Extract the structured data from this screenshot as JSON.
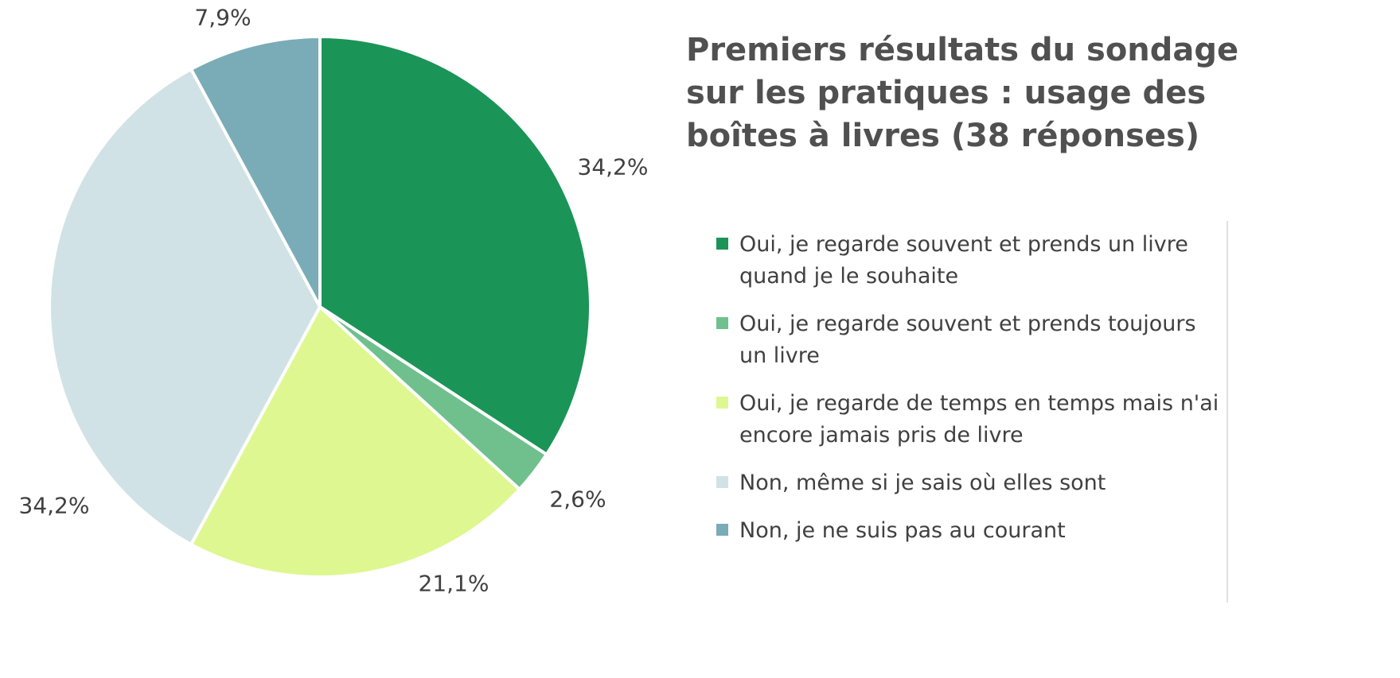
{
  "chart_data": {
    "type": "pie",
    "title": "Premiers résultats du sondage sur les pratiques : usage des boîtes à livres (38 réponses)",
    "slices": [
      {
        "label": "Oui, je regarde souvent et prends un livre quand je le souhaite",
        "value": 34.2,
        "display": "34,2%",
        "color": "#1b9457"
      },
      {
        "label": "Oui, je regarde souvent et prends toujours un livre",
        "value": 2.6,
        "display": "2,6%",
        "color": "#70c08e"
      },
      {
        "label": "Oui, je regarde de temps en temps mais n'ai encore jamais pris de livre",
        "value": 21.1,
        "display": "21,1%",
        "color": "#def790"
      },
      {
        "label": "Non, même si je sais où elles sont",
        "value": 34.2,
        "display": "34,2%",
        "color": "#d0e2e5"
      },
      {
        "label": "Non, je ne suis pas au courant",
        "value": 7.9,
        "display": "7,9%",
        "color": "#79acb6"
      }
    ],
    "legend_position": "right"
  }
}
